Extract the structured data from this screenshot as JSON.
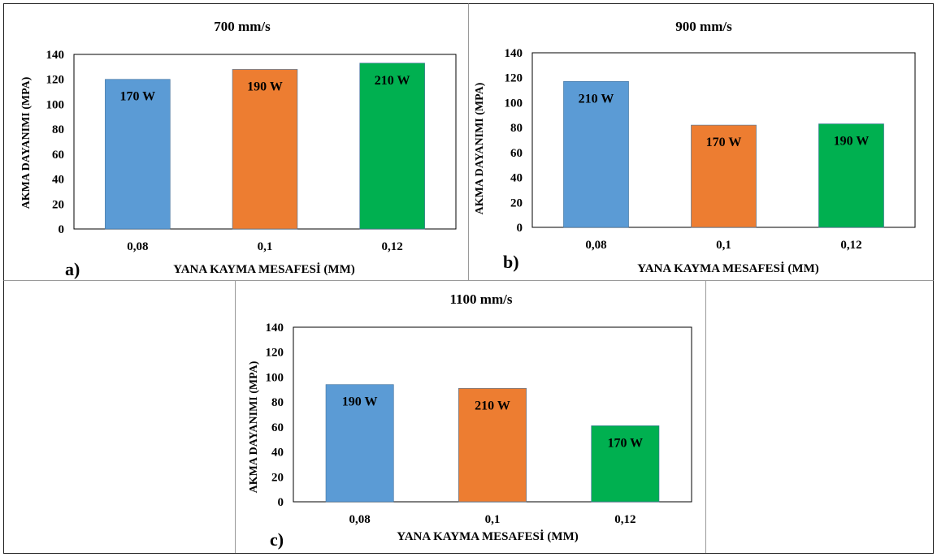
{
  "colors": {
    "blue": "#5b9bd5",
    "orange": "#ed7d31",
    "green": "#00b050"
  },
  "chart_data": [
    {
      "type": "bar",
      "title": "700 mm/s",
      "panel_label": "a)",
      "xlabel": "YANA KAYMA MESAFESİ (MM)",
      "ylabel": "AKMA DAYANIMI (MPA)",
      "categories": [
        "0,08",
        "0,1",
        "0,12"
      ],
      "values": [
        120,
        128,
        133
      ],
      "bar_labels": [
        "170 W",
        "190 W",
        "210 W"
      ],
      "bar_colors": [
        "#5b9bd5",
        "#ed7d31",
        "#00b050"
      ],
      "ylim": [
        0,
        140
      ],
      "yticks": [
        0,
        20,
        40,
        60,
        80,
        100,
        120,
        140
      ],
      "grid": false
    },
    {
      "type": "bar",
      "title": "900 mm/s",
      "panel_label": "b)",
      "xlabel": "YANA KAYMA MESAFESİ (MM)",
      "ylabel": "AKMA DAYANIMI (MPA)",
      "categories": [
        "0,08",
        "0,1",
        "0,12"
      ],
      "values": [
        117,
        82,
        83
      ],
      "bar_labels": [
        "210 W",
        "170 W",
        "190 W"
      ],
      "bar_colors": [
        "#5b9bd5",
        "#ed7d31",
        "#00b050"
      ],
      "ylim": [
        0,
        140
      ],
      "yticks": [
        0,
        20,
        40,
        60,
        80,
        100,
        120,
        140
      ],
      "grid": false
    },
    {
      "type": "bar",
      "title": "1100 mm/s",
      "panel_label": "c)",
      "xlabel": "YANA KAYMA MESAFESİ (MM)",
      "ylabel": "AKMA DAYANIMI (MPA)",
      "categories": [
        "0,08",
        "0,1",
        "0,12"
      ],
      "values": [
        94,
        91,
        61
      ],
      "bar_labels": [
        "190 W",
        "210 W",
        "170 W"
      ],
      "bar_colors": [
        "#5b9bd5",
        "#ed7d31",
        "#00b050"
      ],
      "ylim": [
        0,
        140
      ],
      "yticks": [
        0,
        20,
        40,
        60,
        80,
        100,
        120,
        140
      ],
      "grid": false
    }
  ]
}
